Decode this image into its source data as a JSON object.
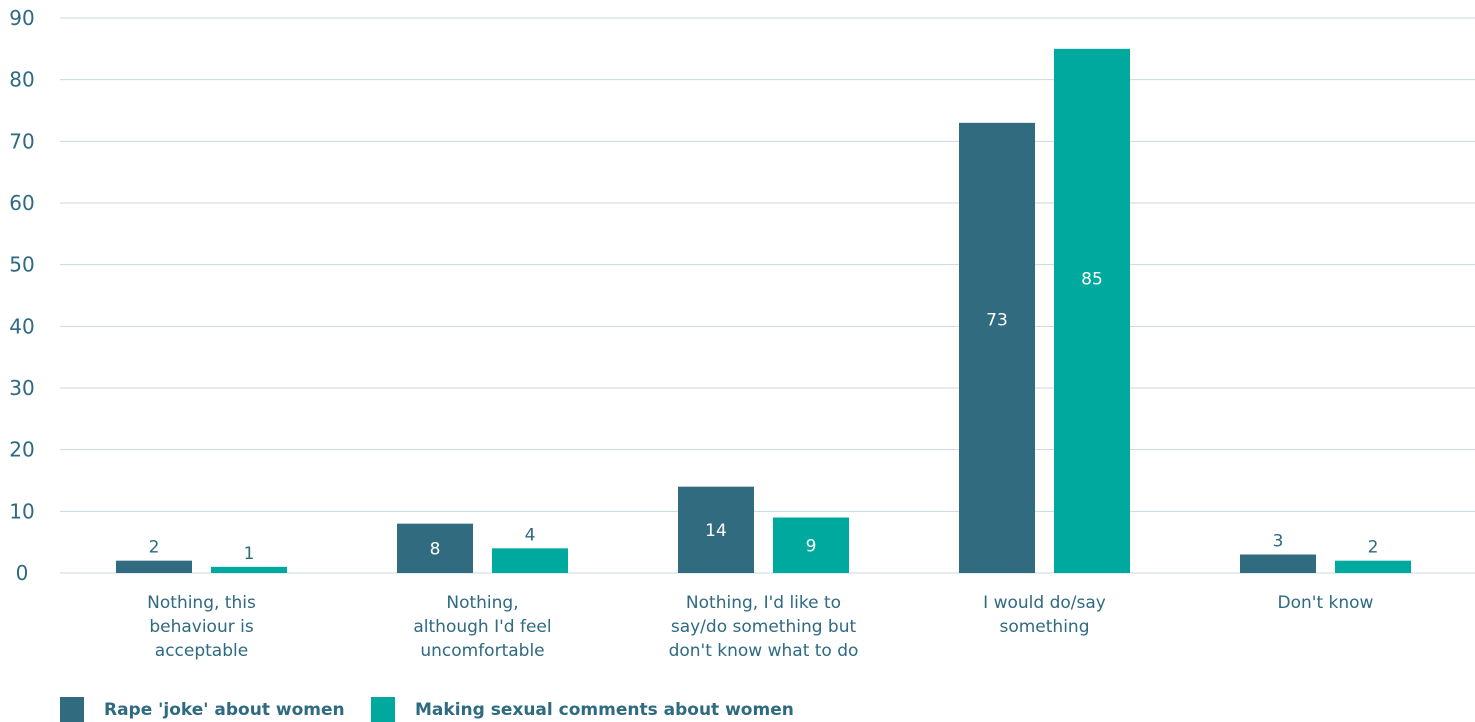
{
  "chart_data": {
    "type": "bar",
    "categories": [
      [
        "Nothing, this",
        "behaviour is",
        "acceptable"
      ],
      [
        "Nothing,",
        "although I'd feel",
        "uncomfortable"
      ],
      [
        "Nothing, I'd like to",
        "say/do something but",
        "don't know what to do"
      ],
      [
        "I would do/say",
        "something"
      ],
      [
        "Don't know"
      ]
    ],
    "series": [
      {
        "name": "Rape 'joke' about women",
        "values": [
          2,
          8,
          14,
          73,
          3
        ],
        "color": "#316b80"
      },
      {
        "name": "Making sexual comments about women",
        "values": [
          1,
          4,
          9,
          85,
          2
        ],
        "color": "#00a99d"
      }
    ],
    "ylim": [
      0,
      90
    ],
    "yticks": [
      0,
      10,
      20,
      30,
      40,
      50,
      60,
      70,
      80,
      90
    ],
    "grid": true,
    "legend_position": "bottom-left",
    "label_colors": {
      "inside": "#ffffff",
      "outside": "#2e6a80"
    }
  }
}
